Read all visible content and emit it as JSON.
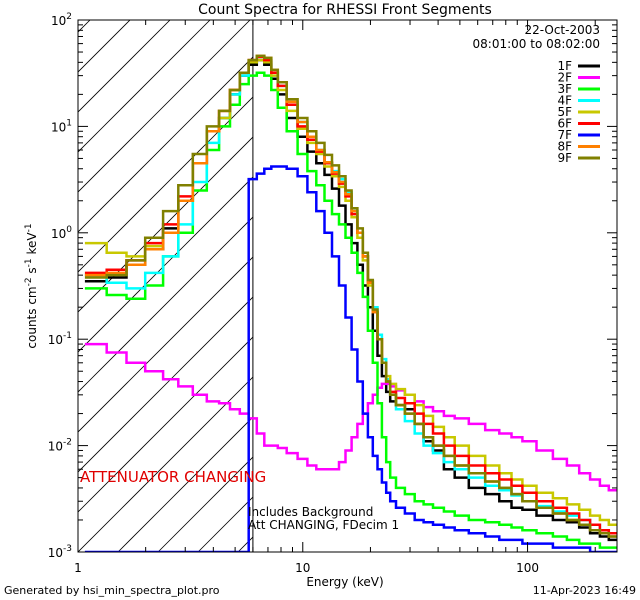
{
  "chart_data": {
    "type": "line",
    "title": "Count Spectra for RHESSI Front Segments",
    "xlabel": "Energy (keV)",
    "ylabel": "counts cm",
    "ylabel_sup1": "-2",
    "ylabel_mid": " s",
    "ylabel_sup2": "-1",
    "ylabel_mid2": " keV",
    "ylabel_sup3": "-1",
    "xscale": "log",
    "yscale": "log",
    "xlim": [
      1,
      250
    ],
    "ylim": [
      0.001,
      100
    ],
    "x_ticks": [
      {
        "value": 1,
        "label": "1"
      },
      {
        "value": 10,
        "label": "10"
      },
      {
        "value": 100,
        "label": "100"
      }
    ],
    "y_ticks": [
      {
        "value": 0.001,
        "base": "10",
        "exp": "-3"
      },
      {
        "value": 0.01,
        "base": "10",
        "exp": "-2"
      },
      {
        "value": 0.1,
        "base": "10",
        "exp": "-1"
      },
      {
        "value": 1,
        "base": "10",
        "exp": "0"
      },
      {
        "value": 10,
        "base": "10",
        "exp": "1"
      },
      {
        "value": 100,
        "base": "10",
        "exp": "2"
      }
    ],
    "date": "22-Oct-2003",
    "time_range": "08:01:00 to 08:02:00",
    "attenuator_text": "ATTENUATOR CHANGING",
    "attenuator_energy": 6,
    "note_line1": "Includes Background",
    "note_line2": "Att CHANGING, FDecim 1",
    "legend_position": "top-right",
    "x": [
      1.2,
      1.5,
      1.8,
      2.2,
      2.6,
      3.0,
      3.5,
      4.0,
      4.5,
      5.0,
      5.5,
      6.0,
      6.5,
      7.0,
      7.5,
      8.0,
      9.0,
      10,
      11,
      12,
      13,
      14,
      15,
      16,
      17,
      18,
      19,
      20,
      21,
      22,
      23,
      24,
      25,
      27,
      30,
      33,
      36,
      40,
      45,
      50,
      60,
      70,
      80,
      90,
      100,
      120,
      140,
      160,
      180,
      200,
      220,
      240
    ],
    "series": [
      {
        "name": "1F",
        "color": "#000000",
        "values": [
          0.35,
          0.38,
          0.5,
          0.7,
          1.1,
          2.0,
          4.5,
          9,
          12,
          20,
          30,
          38,
          42,
          38,
          28,
          20,
          12,
          8,
          5.8,
          4.5,
          3.5,
          2.6,
          1.8,
          1.2,
          0.8,
          0.5,
          0.32,
          0.2,
          0.12,
          0.07,
          0.045,
          0.032,
          0.026,
          0.024,
          0.022,
          0.016,
          0.011,
          0.009,
          0.006,
          0.005,
          0.004,
          0.0035,
          0.003,
          0.0026,
          0.0025,
          0.0022,
          0.002,
          0.0019,
          0.0017,
          0.0015,
          0.0014,
          0.0013
        ]
      },
      {
        "name": "2F",
        "color": "#ff00ff",
        "values": [
          0.09,
          0.075,
          0.06,
          0.05,
          0.042,
          0.036,
          0.03,
          0.026,
          0.025,
          0.022,
          0.02,
          0.018,
          0.013,
          0.01,
          0.01,
          0.0095,
          0.0085,
          0.0075,
          0.0065,
          0.006,
          0.006,
          0.006,
          0.007,
          0.009,
          0.012,
          0.016,
          0.02,
          0.025,
          0.03,
          0.035,
          0.038,
          0.038,
          0.036,
          0.033,
          0.03,
          0.026,
          0.023,
          0.021,
          0.019,
          0.018,
          0.016,
          0.014,
          0.013,
          0.012,
          0.011,
          0.009,
          0.0075,
          0.0065,
          0.0055,
          0.0048,
          0.0042,
          0.0038
        ]
      },
      {
        "name": "3F",
        "color": "#00ff00",
        "values": [
          0.3,
          0.26,
          0.24,
          0.32,
          0.6,
          1.0,
          2.5,
          6,
          10,
          16,
          25,
          30,
          32,
          30,
          22,
          15,
          9,
          5.5,
          3.8,
          2.8,
          2.0,
          1.5,
          1.2,
          0.9,
          0.65,
          0.42,
          0.25,
          0.12,
          0.06,
          0.025,
          0.012,
          0.007,
          0.005,
          0.004,
          0.0035,
          0.003,
          0.0028,
          0.0026,
          0.0024,
          0.0022,
          0.002,
          0.0019,
          0.0018,
          0.0017,
          0.0016,
          0.0015,
          0.0014,
          0.0013,
          0.0012,
          0.0012,
          0.0011,
          0.0011
        ]
      },
      {
        "name": "4F",
        "color": "#00ffff",
        "values": [
          0.4,
          0.34,
          0.3,
          0.42,
          0.6,
          1.2,
          3.0,
          7,
          12,
          20,
          30,
          40,
          45,
          42,
          32,
          24,
          16,
          11,
          8,
          6,
          4.5,
          3.8,
          3.2,
          2.4,
          1.6,
          1.0,
          0.6,
          0.35,
          0.2,
          0.11,
          0.065,
          0.042,
          0.03,
          0.022,
          0.017,
          0.013,
          0.01,
          0.0085,
          0.007,
          0.006,
          0.005,
          0.0042,
          0.0038,
          0.0034,
          0.003,
          0.0027,
          0.0024,
          0.0022,
          0.002,
          0.0018,
          0.0016,
          0.0015
        ]
      },
      {
        "name": "5F",
        "color": "#c8c800",
        "values": [
          0.8,
          0.65,
          0.6,
          0.75,
          1.0,
          2.0,
          4.5,
          9,
          12,
          22,
          32,
          40,
          42,
          40,
          30,
          22,
          14,
          9.5,
          7,
          5.5,
          4.2,
          3.4,
          2.7,
          2.0,
          1.4,
          0.9,
          0.55,
          0.32,
          0.18,
          0.1,
          0.06,
          0.045,
          0.038,
          0.034,
          0.03,
          0.024,
          0.019,
          0.015,
          0.012,
          0.01,
          0.008,
          0.0065,
          0.0055,
          0.0048,
          0.0042,
          0.0036,
          0.0032,
          0.0028,
          0.0025,
          0.0022,
          0.002,
          0.0018
        ]
      },
      {
        "name": "6F",
        "color": "#ff0000",
        "values": [
          0.42,
          0.45,
          0.55,
          0.8,
          1.2,
          2.2,
          4.5,
          9,
          14,
          22,
          32,
          42,
          45,
          42,
          32,
          24,
          16,
          10,
          7.5,
          5.8,
          4.5,
          3.6,
          2.9,
          2.2,
          1.5,
          1.0,
          0.6,
          0.35,
          0.18,
          0.1,
          0.06,
          0.04,
          0.032,
          0.028,
          0.025,
          0.02,
          0.016,
          0.013,
          0.01,
          0.008,
          0.0065,
          0.0055,
          0.0048,
          0.0042,
          0.0036,
          0.003,
          0.0026,
          0.0023,
          0.002,
          0.0018,
          0.0016,
          0.0015
        ]
      },
      {
        "name": "7F",
        "color": "#0000ff",
        "values": [
          0.001,
          0.001,
          0.001,
          0.001,
          0.001,
          0.001,
          0.001,
          0.001,
          0.001,
          0.001,
          0.001,
          3.2,
          3.6,
          4.0,
          4.2,
          4.2,
          4.0,
          3.4,
          2.4,
          1.6,
          1.0,
          0.6,
          0.32,
          0.16,
          0.08,
          0.04,
          0.02,
          0.012,
          0.008,
          0.006,
          0.0045,
          0.0036,
          0.003,
          0.0026,
          0.0023,
          0.002,
          0.0019,
          0.0018,
          0.0017,
          0.0016,
          0.0015,
          0.0014,
          0.0013,
          0.0013,
          0.0012,
          0.0012,
          0.0011,
          0.0011,
          0.0011,
          0.001,
          0.001,
          0.001
        ]
      },
      {
        "name": "8F",
        "color": "#ff8000",
        "values": [
          0.4,
          0.42,
          0.5,
          0.7,
          1.0,
          2.0,
          4.5,
          9,
          14,
          22,
          32,
          42,
          46,
          44,
          34,
          26,
          17,
          11,
          8,
          6,
          4.6,
          3.7,
          3.0,
          2.3,
          1.6,
          1.0,
          0.6,
          0.34,
          0.18,
          0.1,
          0.06,
          0.04,
          0.03,
          0.024,
          0.02,
          0.016,
          0.012,
          0.01,
          0.008,
          0.0065,
          0.0055,
          0.0046,
          0.004,
          0.0035,
          0.003,
          0.0026,
          0.0023,
          0.002,
          0.0018,
          0.0016,
          0.0015,
          0.0014
        ]
      },
      {
        "name": "9F",
        "color": "#808000",
        "values": [
          0.38,
          0.4,
          0.55,
          0.9,
          1.6,
          2.8,
          5.5,
          10,
          14,
          22,
          32,
          42,
          46,
          44,
          34,
          26,
          18,
          12,
          9,
          7,
          5.4,
          4.3,
          3.4,
          2.5,
          1.7,
          1.1,
          0.65,
          0.36,
          0.19,
          0.1,
          0.06,
          0.04,
          0.03,
          0.024,
          0.02,
          0.016,
          0.012,
          0.01,
          0.008,
          0.0065,
          0.0055,
          0.0046,
          0.004,
          0.0035,
          0.003,
          0.0026,
          0.0023,
          0.002,
          0.0018,
          0.0016,
          0.0015,
          0.0014
        ]
      }
    ],
    "footer_left": "Generated by hsi_min_spectra_plot.pro",
    "footer_right": "11-Apr-2023 16:49"
  }
}
